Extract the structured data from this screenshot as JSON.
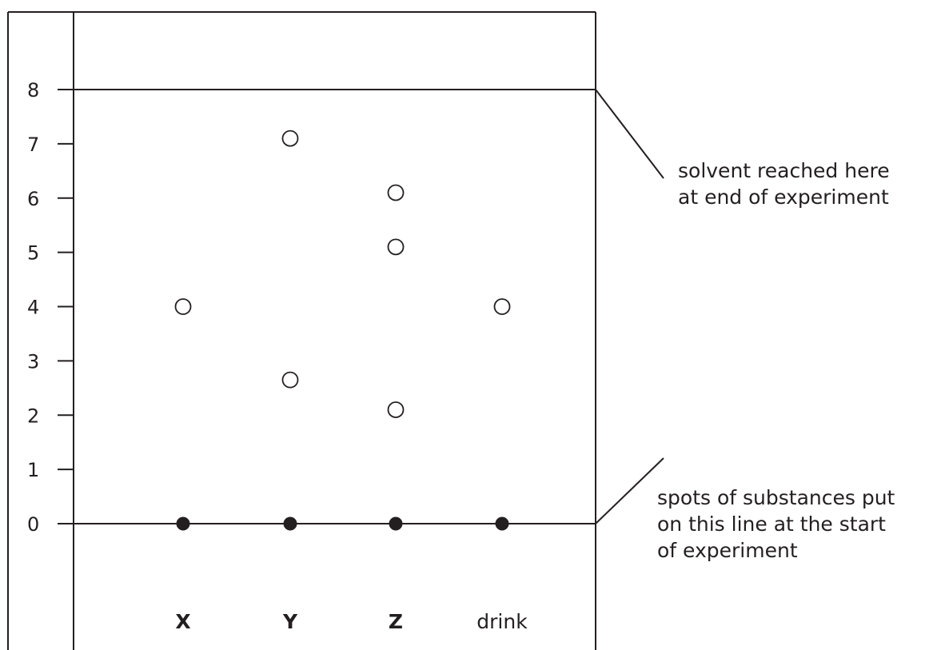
{
  "chart_data": {
    "type": "scatter",
    "title": "",
    "xlabel": "",
    "ylabel": "",
    "ylim": [
      0,
      8
    ],
    "y_ticks": [
      "0",
      "1",
      "2",
      "3",
      "4",
      "5",
      "6",
      "7",
      "8"
    ],
    "categories": [
      "X",
      "Y",
      "Z",
      "drink"
    ],
    "category_bold": [
      true,
      true,
      true,
      false
    ],
    "start_spots": [
      {
        "lane": "X",
        "y": 0
      },
      {
        "lane": "Y",
        "y": 0
      },
      {
        "lane": "Z",
        "y": 0
      },
      {
        "lane": "drink",
        "y": 0
      }
    ],
    "final_spots": [
      {
        "lane": "X",
        "y": 4.0
      },
      {
        "lane": "Y",
        "y": 7.1
      },
      {
        "lane": "Y",
        "y": 2.65
      },
      {
        "lane": "Z",
        "y": 6.1
      },
      {
        "lane": "Z",
        "y": 5.1
      },
      {
        "lane": "Z",
        "y": 2.1
      },
      {
        "lane": "drink",
        "y": 4.0
      }
    ],
    "solvent_front": 8,
    "start_line": 0,
    "annotations": {
      "solvent_front": [
        "solvent reached here",
        "at end of experiment"
      ],
      "start_line": [
        "spots of substances put",
        "on this line at the start",
        "of experiment"
      ]
    }
  }
}
